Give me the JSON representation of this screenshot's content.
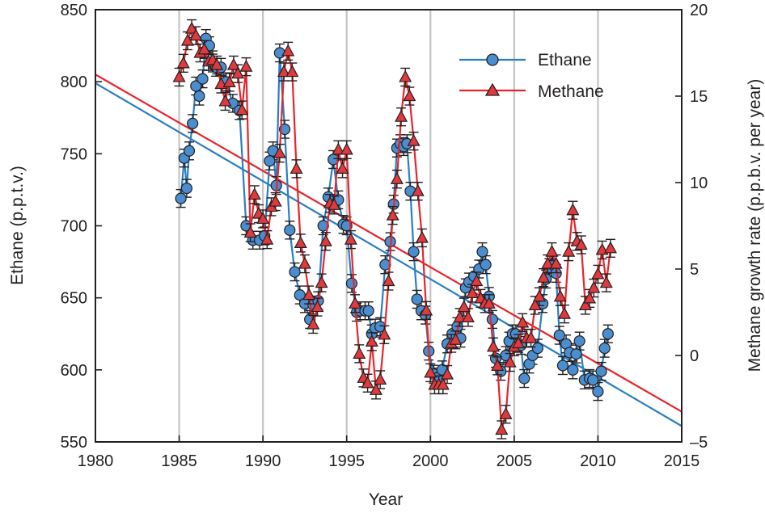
{
  "chart_data": {
    "type": "line",
    "xlabel": "Year",
    "ylabel": "Ethane (p.p.t.v.)",
    "y2label": "Methane growth rate (p.p.b.v. per year)",
    "xlim": [
      1980,
      2015
    ],
    "ylim": [
      550,
      850
    ],
    "y2lim": [
      -5,
      20
    ],
    "xticks": [
      "1980",
      "1985",
      "1990",
      "1995",
      "2000",
      "2005",
      "2010",
      "2015"
    ],
    "yticks": [
      "550",
      "600",
      "650",
      "700",
      "750",
      "800",
      "850"
    ],
    "y2ticks": [
      "–5",
      "0",
      "5",
      "10",
      "15",
      "20"
    ],
    "grid_x_years": [
      1985,
      1990,
      1995,
      2000,
      2005,
      2010
    ],
    "legend_position": "top-right",
    "series": [
      {
        "name": "Ethane",
        "axis": "left",
        "color": "#2b7ec1",
        "marker": "circle",
        "marker_fill": "#4a8ed0",
        "x": [
          1985.1,
          1985.3,
          1985.45,
          1985.6,
          1985.8,
          1986.0,
          1986.2,
          1986.4,
          1986.6,
          1986.8,
          1987.0,
          1987.2,
          1987.5,
          1987.8,
          1988.2,
          1988.6,
          1989.0,
          1989.4,
          1989.8,
          1990.1,
          1990.4,
          1990.6,
          1990.8,
          1991.0,
          1991.3,
          1991.6,
          1991.9,
          1992.2,
          1992.5,
          1992.8,
          1993.0,
          1993.3,
          1993.6,
          1993.9,
          1994.2,
          1994.5,
          1994.8,
          1995.0,
          1995.3,
          1995.6,
          1995.8,
          1996.1,
          1996.3,
          1996.5,
          1996.7,
          1997.0,
          1997.3,
          1997.6,
          1997.8,
          1998.0,
          1998.2,
          1998.4,
          1998.6,
          1998.8,
          1999.0,
          1999.2,
          1999.45,
          1999.7,
          1999.9,
          2000.2,
          2000.5,
          2000.7,
          2001.0,
          2001.3,
          2001.6,
          2001.8,
          2002.1,
          2002.3,
          2002.6,
          2002.9,
          2003.1,
          2003.3,
          2003.5,
          2003.7,
          2003.9,
          2004.2,
          2004.5,
          2004.7,
          2004.9,
          2005.1,
          2005.4,
          2005.6,
          2005.9,
          2006.1,
          2006.4,
          2006.7,
          2006.9,
          2007.1,
          2007.3,
          2007.5,
          2007.7,
          2007.9,
          2008.1,
          2008.3,
          2008.5,
          2008.7,
          2008.9,
          2009.2,
          2009.5,
          2009.7,
          2010.0,
          2010.2,
          2010.4,
          2010.6
        ],
        "values": [
          719,
          747,
          726,
          752,
          771,
          797,
          790,
          802,
          830,
          825,
          813,
          810,
          810,
          800,
          785,
          780,
          700,
          690,
          690,
          693,
          745,
          752,
          728,
          820,
          767,
          697,
          668,
          652,
          646,
          635,
          645,
          648,
          700,
          720,
          746,
          718,
          701,
          700,
          660,
          640,
          641,
          641,
          641,
          625,
          629,
          630,
          673,
          689,
          715,
          754,
          757,
          755,
          757,
          724,
          682,
          649,
          641,
          638,
          613,
          597,
          595,
          600,
          618,
          625,
          630,
          622,
          657,
          661,
          665,
          670,
          682,
          673,
          651,
          635,
          608,
          599,
          610,
          620,
          625,
          625,
          617,
          594,
          604,
          610,
          615,
          646,
          663,
          671,
          673,
          667,
          624,
          603,
          618,
          612,
          600,
          611,
          620,
          593,
          594,
          593,
          585,
          599,
          615,
          625
        ]
      },
      {
        "name": "Methane",
        "axis": "right",
        "color": "#e8242b",
        "marker": "triangle",
        "marker_fill": "#e03a3e",
        "x": [
          1985.0,
          1985.25,
          1985.5,
          1985.75,
          1986.0,
          1986.25,
          1986.5,
          1986.75,
          1987.0,
          1987.25,
          1987.5,
          1987.75,
          1988.0,
          1988.25,
          1988.5,
          1988.75,
          1989.0,
          1989.25,
          1989.5,
          1989.75,
          1990.0,
          1990.25,
          1990.5,
          1990.75,
          1991.0,
          1991.25,
          1991.5,
          1991.75,
          1992.0,
          1992.25,
          1992.5,
          1992.75,
          1993.0,
          1993.25,
          1993.5,
          1993.75,
          1994.0,
          1994.25,
          1994.5,
          1994.75,
          1995.0,
          1995.25,
          1995.5,
          1995.75,
          1996.0,
          1996.25,
          1996.5,
          1996.75,
          1997.0,
          1997.25,
          1997.5,
          1997.75,
          1998.0,
          1998.25,
          1998.5,
          1998.75,
          1999.0,
          1999.25,
          1999.5,
          1999.75,
          2000.0,
          2000.25,
          2000.5,
          2000.75,
          2001.0,
          2001.25,
          2001.5,
          2001.75,
          2002.0,
          2002.25,
          2002.5,
          2002.75,
          2003.0,
          2003.25,
          2003.5,
          2003.75,
          2004.0,
          2004.25,
          2004.5,
          2004.75,
          2005.0,
          2005.25,
          2005.5,
          2005.75,
          2006.0,
          2006.25,
          2006.5,
          2006.75,
          2007.0,
          2007.25,
          2007.5,
          2007.75,
          2008.0,
          2008.25,
          2008.5,
          2008.75,
          2009.0,
          2009.25,
          2009.5,
          2009.75,
          2010.0,
          2010.25,
          2010.5,
          2010.75
        ],
        "values": [
          16.1,
          16.9,
          18.2,
          18.9,
          18.5,
          17.5,
          17.7,
          17.0,
          17.1,
          16.8,
          15.7,
          14.7,
          15.8,
          16.8,
          16.3,
          14.2,
          16.7,
          7.1,
          9.3,
          8.2,
          7.9,
          6.7,
          8.6,
          8.9,
          11.7,
          16.4,
          17.6,
          16.4,
          10.8,
          6.5,
          5.3,
          3.5,
          1.8,
          2.8,
          4.2,
          6.6,
          8.8,
          8.7,
          11.9,
          10.8,
          11.9,
          6.7,
          3.0,
          0.1,
          -1.3,
          -1.6,
          0.8,
          -2.0,
          -1.4,
          1.2,
          4.3,
          8.1,
          10.2,
          13.8,
          16.1,
          15.0,
          12.4,
          9.5,
          6.8,
          2.6,
          -1.0,
          -1.7,
          -1.7,
          -1.7,
          -1.1,
          0.7,
          0.9,
          2.2,
          2.8,
          2.2,
          3.6,
          4.3,
          3.3,
          3.0,
          3.0,
          0.5,
          -0.6,
          -4.3,
          -3.4,
          -0.4,
          0.5,
          0.7,
          1.9,
          1.0,
          1.0,
          2.9,
          3.4,
          4.5,
          5.3,
          6.0,
          5.3,
          3.4,
          2.4,
          6.0,
          8.4,
          6.6,
          6.4,
          2.9,
          3.3,
          3.9,
          4.7,
          6.1,
          4.2,
          6.2
        ]
      }
    ],
    "trend_lines": [
      {
        "series": "Ethane",
        "color": "#2b7ec1",
        "from": [
          1980,
          799
        ],
        "to": [
          2015,
          561
        ]
      },
      {
        "series": "Methane",
        "color": "#e8242b",
        "from": [
          1980,
          805
        ],
        "to": [
          2015,
          571
        ]
      }
    ]
  }
}
